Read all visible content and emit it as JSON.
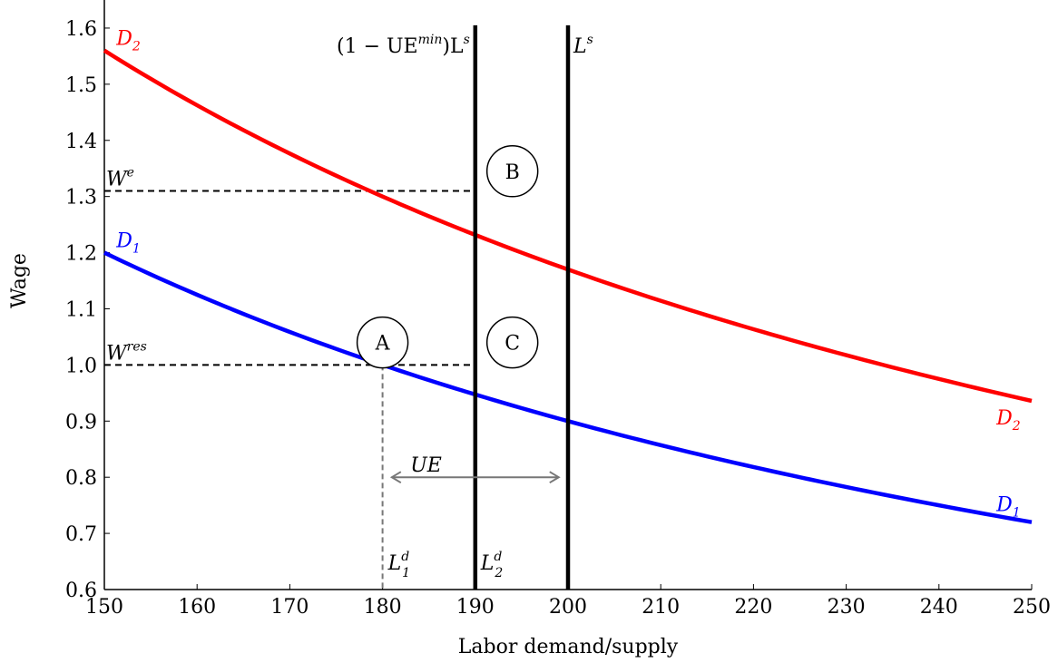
{
  "chart_data": {
    "type": "line",
    "xlabel": "Labor demand/supply",
    "ylabel": "Wage",
    "xlim": [
      150,
      250
    ],
    "ylim": [
      0.6,
      1.65
    ],
    "x_ticks": [
      150,
      160,
      170,
      180,
      190,
      200,
      210,
      220,
      230,
      240,
      250
    ],
    "y_ticks": [
      0.6,
      0.7,
      0.8,
      0.9,
      1.0,
      1.1,
      1.2,
      1.3,
      1.4,
      1.5,
      1.6
    ],
    "y_tick_labels": [
      "0.6",
      "0.7",
      "0.8",
      "0.9",
      "1.0",
      "1.1",
      "1.2",
      "1.3",
      "1.4",
      "1.5",
      "1.6"
    ],
    "grid": false,
    "series": [
      {
        "name": "D1",
        "color": "#0000ff",
        "x": [
          150,
          160,
          170,
          180,
          190,
          200,
          210,
          220,
          230,
          240,
          250
        ],
        "y": [
          1.2,
          1.125,
          1.059,
          1.0,
          0.947,
          0.9,
          0.857,
          0.818,
          0.783,
          0.75,
          0.72
        ]
      },
      {
        "name": "D2",
        "color": "#ff0000",
        "x": [
          150,
          160,
          170,
          180,
          190,
          200,
          210,
          220,
          230,
          240,
          250
        ],
        "y": [
          1.56,
          1.4625,
          1.376,
          1.3,
          1.232,
          1.17,
          1.114,
          1.064,
          1.017,
          0.975,
          0.936
        ]
      }
    ],
    "curve_labels": {
      "d1_main": "D",
      "d1_sub": "1",
      "d2_main": "D",
      "d2_sub": "2"
    },
    "vertical_lines": [
      {
        "x": 190,
        "label_main": "(1 − UE",
        "label_sup": "min",
        "label_tail": ")L",
        "label_sup2": "s"
      },
      {
        "x": 200,
        "label_main": "L",
        "label_sup": "s"
      }
    ],
    "horizontal_dashed": [
      {
        "y": 1.31,
        "x_end": 190,
        "label_main": "W",
        "label_sup": "e"
      },
      {
        "y": 1.0,
        "x_end": 190,
        "label_main": "W",
        "label_sup": "res"
      }
    ],
    "vertical_dashed": [
      {
        "x": 180,
        "y_end": 1.0
      }
    ],
    "markers": [
      {
        "label": "A",
        "x": 180,
        "y": 1.04
      },
      {
        "label": "B",
        "x": 194,
        "y": 1.345
      },
      {
        "label": "C",
        "x": 194,
        "y": 1.04
      }
    ],
    "ld_labels": [
      {
        "x": 180,
        "main": "L",
        "sup": "d",
        "sub": "1"
      },
      {
        "x": 190,
        "main": "L",
        "sup": "d",
        "sub": "2"
      }
    ],
    "ue_arrow": {
      "x_start": 181,
      "x_end": 199,
      "y": 0.8,
      "label": "UE"
    }
  }
}
